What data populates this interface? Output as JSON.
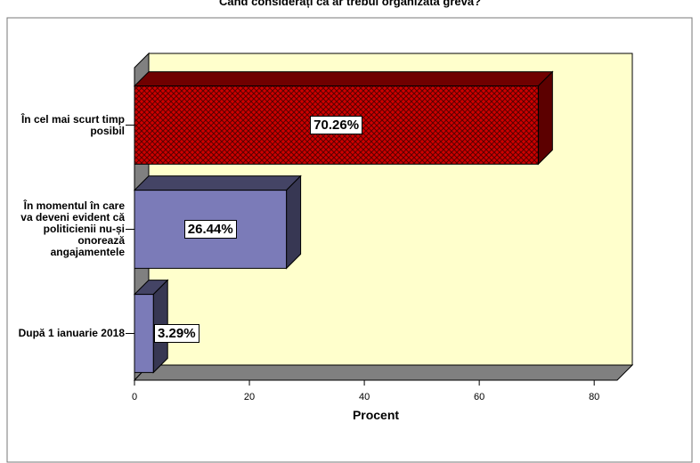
{
  "chart_data": {
    "type": "bar",
    "orientation": "horizontal",
    "title": "Când considerați că ar trebui organizată greva?",
    "x_label": "Procent",
    "categories": [
      "În cel mai scurt timp posibil",
      "În momentul în care va deveni evident că politicienii nu-și onorează angajamentele",
      "După 1 ianuarie 2018"
    ],
    "values": [
      70.26,
      26.44,
      3.29
    ],
    "value_labels": [
      "70.26%",
      "26.44%",
      "3.29%"
    ],
    "colors": [
      "#cc0000",
      "#7b7bb8",
      "#7b7bb8"
    ],
    "hatched": [
      true,
      false,
      false
    ],
    "xlim": [
      0,
      84
    ],
    "xticks": [
      0,
      20,
      40,
      60,
      80
    ]
  }
}
